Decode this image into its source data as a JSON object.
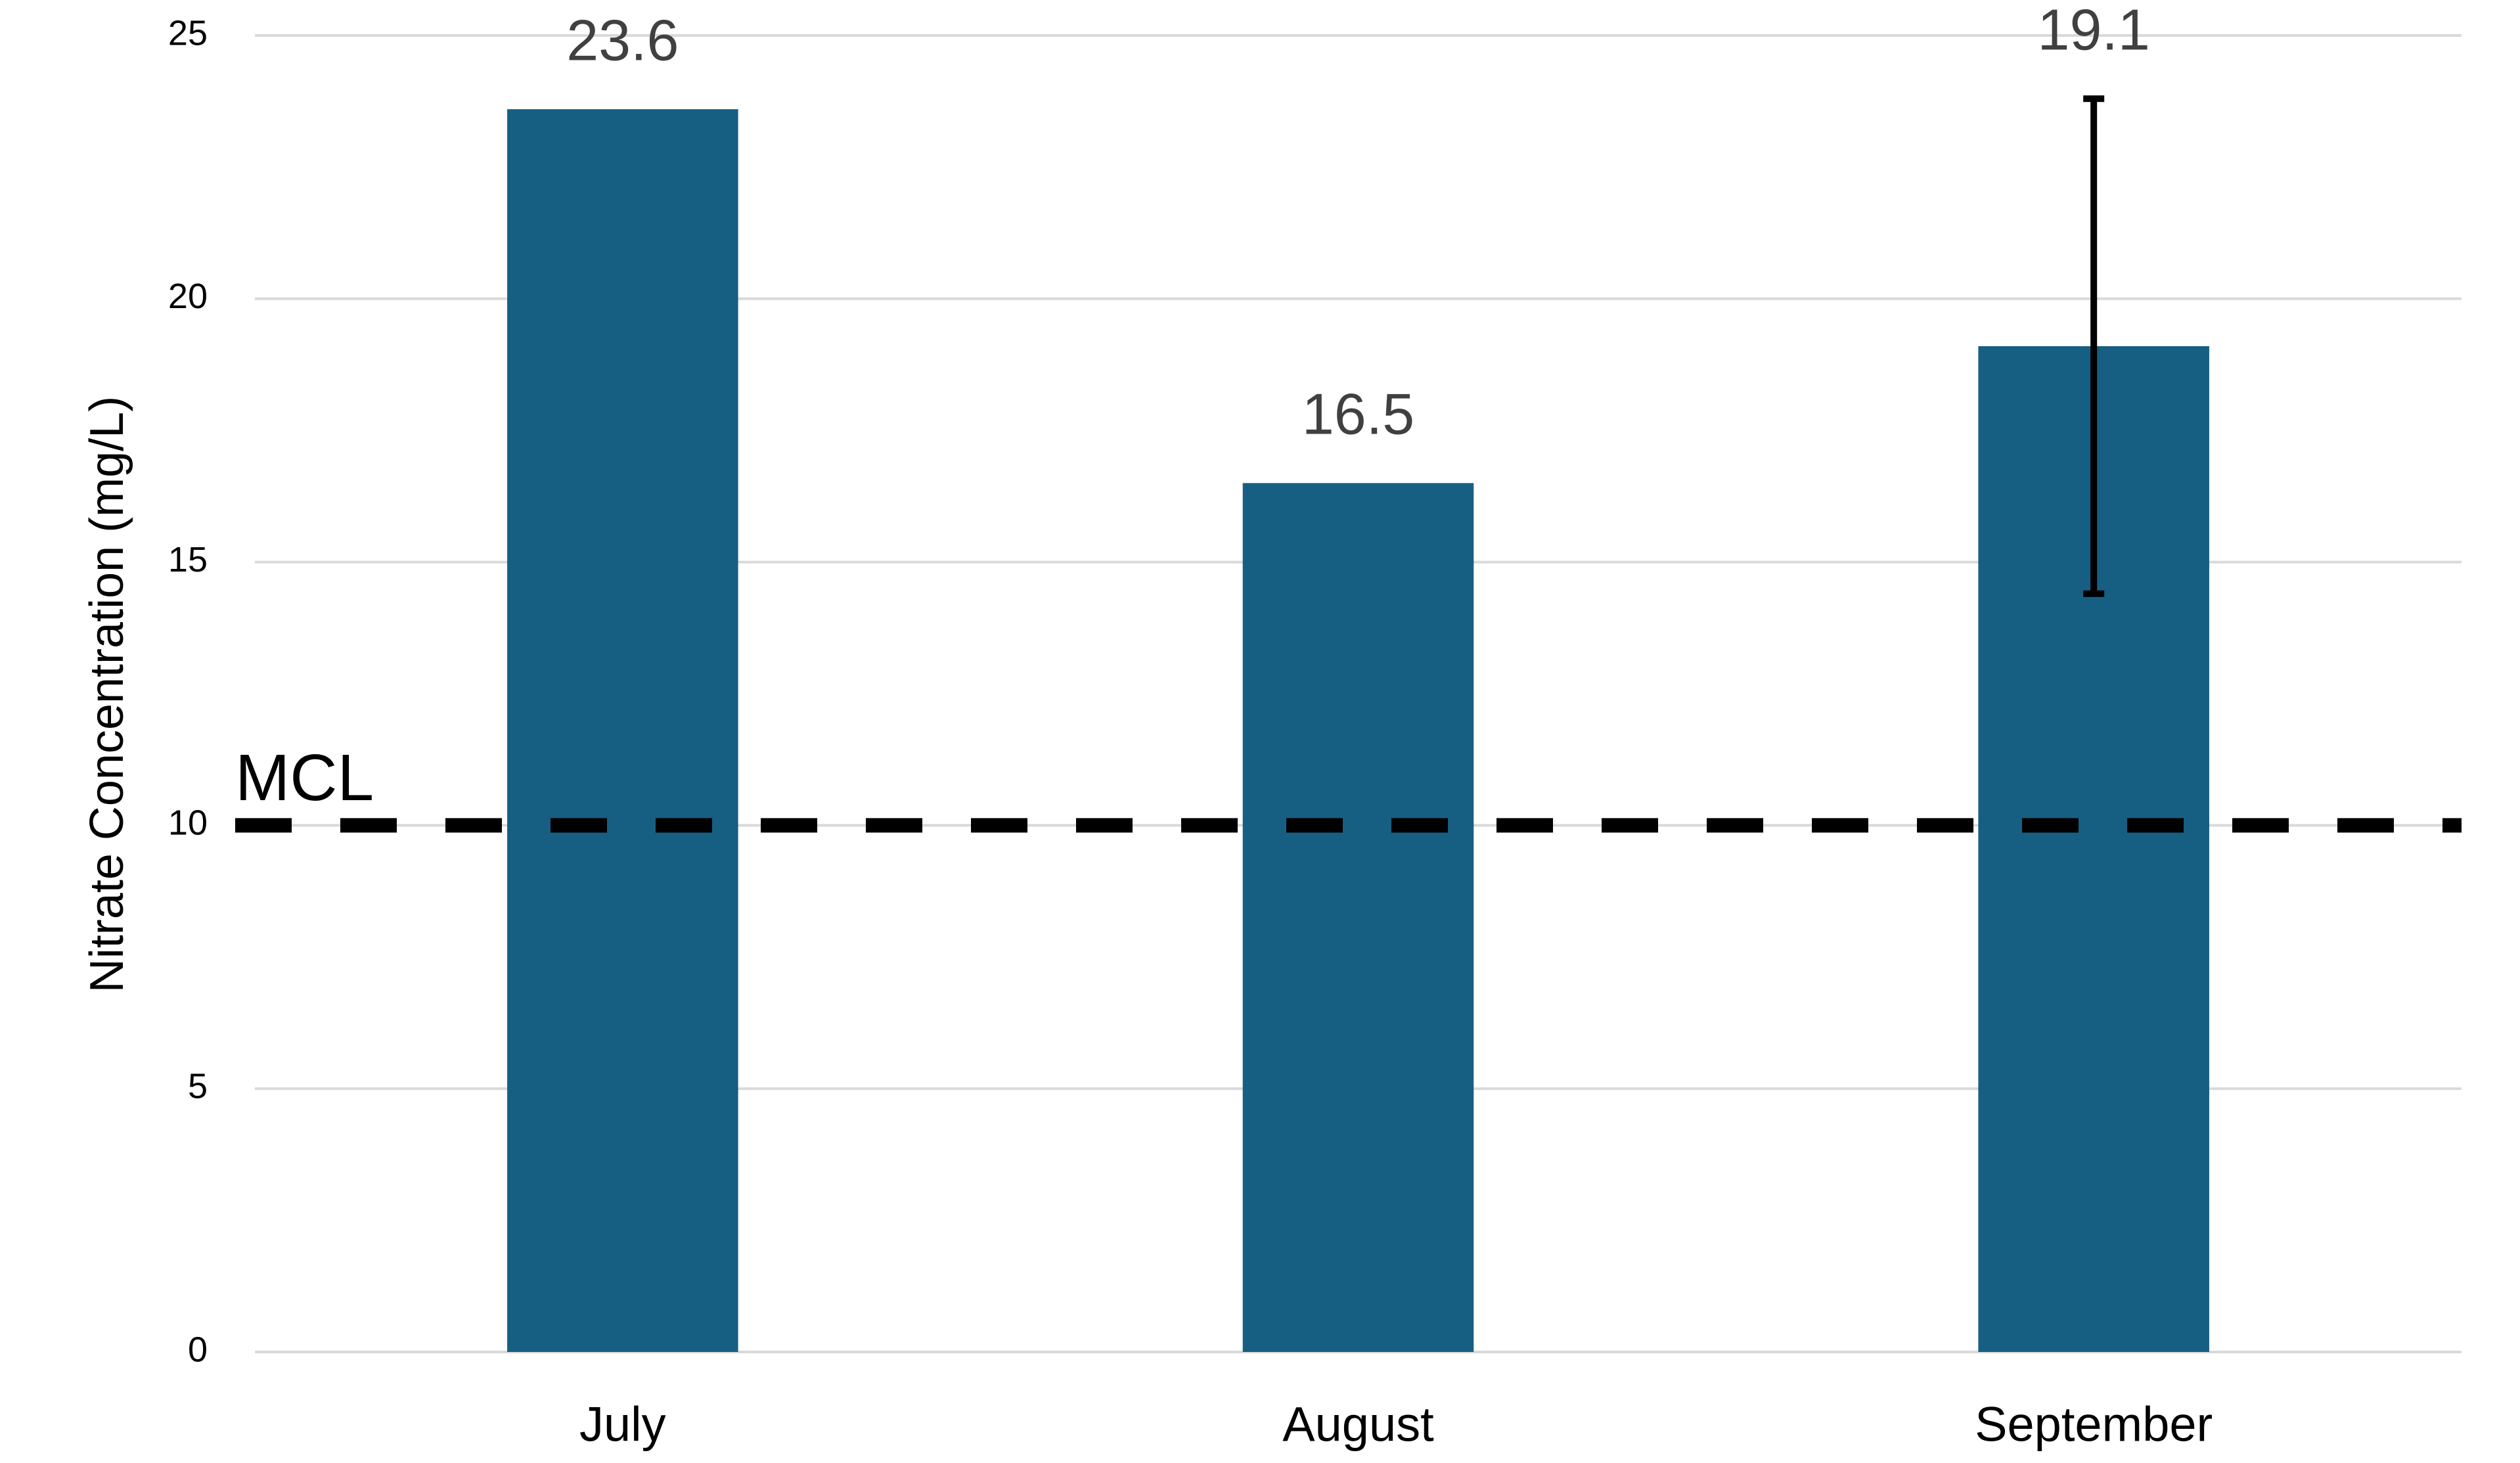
{
  "chart_data": {
    "type": "bar",
    "y_label": "Nitrate Concentration (mg/L)",
    "categories": [
      "July",
      "August",
      "September"
    ],
    "values": [
      23.6,
      16.5,
      19.1
    ],
    "errors": [
      null,
      null,
      4.7
    ],
    "color": "#175f82",
    "ylim": [
      0,
      25
    ],
    "yticks": [
      0,
      5,
      10,
      15,
      20,
      25
    ],
    "grid": true,
    "data_labels": true,
    "reference_line": {
      "value": 10,
      "label": "MCL"
    }
  }
}
